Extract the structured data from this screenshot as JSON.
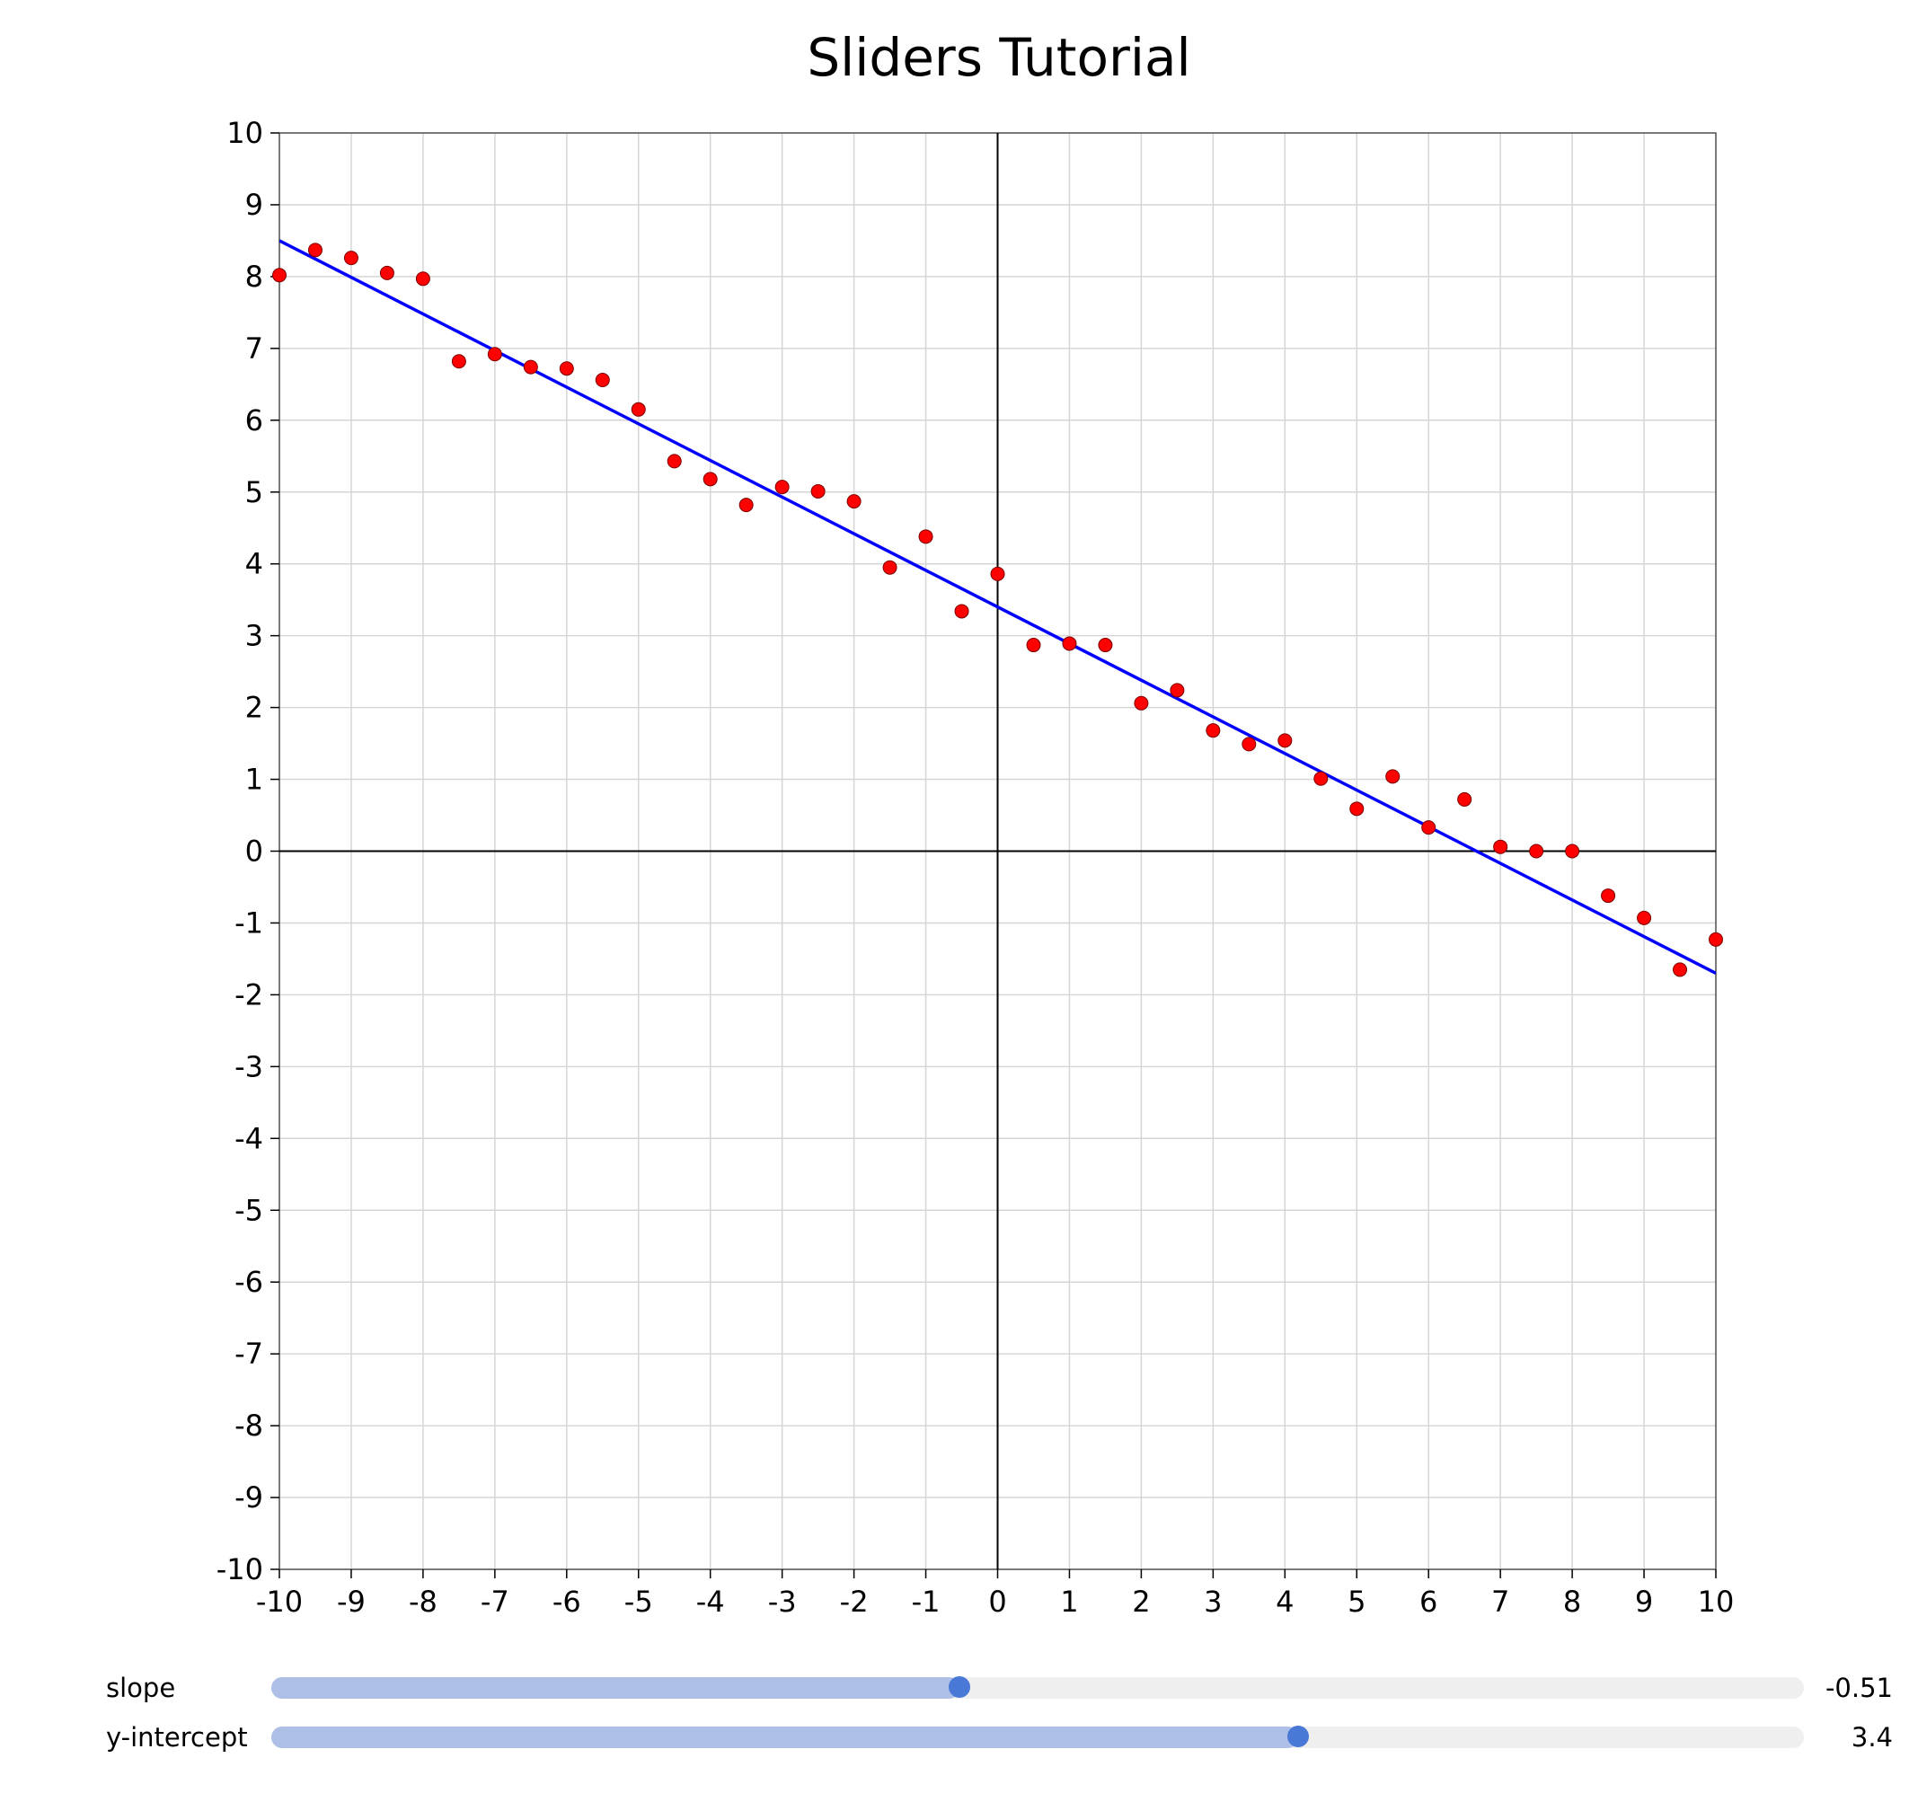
{
  "chart_data": {
    "type": "scatter",
    "title": "Sliders Tutorial",
    "xlabel": "",
    "ylabel": "",
    "xlim": [
      -10,
      10
    ],
    "ylim": [
      -10,
      10
    ],
    "grid": true,
    "x_ticks": [
      "-10",
      "-9",
      "-8",
      "-7",
      "-6",
      "-5",
      "-4",
      "-3",
      "-2",
      "-1",
      "0",
      "1",
      "2",
      "3",
      "4",
      "5",
      "6",
      "7",
      "8",
      "9",
      "10"
    ],
    "y_ticks": [
      "10",
      "9",
      "8",
      "7",
      "6",
      "5",
      "4",
      "3",
      "2",
      "1",
      "0",
      "-1",
      "-2",
      "-3",
      "-4",
      "-5",
      "-6",
      "-7",
      "-8",
      "-9",
      "-10"
    ],
    "series": [
      {
        "name": "points",
        "type": "scatter",
        "color": "#ff0000",
        "x": [
          -10,
          -9.5,
          -9,
          -8.5,
          -8,
          -7.5,
          -7,
          -6.5,
          -6,
          -5.5,
          -5,
          -4.5,
          -4,
          -3.5,
          -3,
          -2.5,
          -2,
          -1.5,
          -1,
          -0.5,
          0,
          0.5,
          1,
          1.5,
          2,
          2.5,
          3,
          3.5,
          4,
          4.5,
          5,
          5.5,
          6,
          6.5,
          7,
          7.5,
          8,
          8.5,
          9,
          9.5,
          10
        ],
        "y": [
          8.02,
          8.37,
          8.26,
          8.05,
          7.97,
          6.82,
          6.92,
          6.74,
          6.72,
          6.56,
          6.15,
          5.43,
          5.18,
          4.82,
          5.07,
          5.01,
          4.87,
          3.95,
          4.38,
          3.34,
          3.86,
          2.87,
          2.89,
          2.87,
          2.06,
          2.24,
          1.68,
          1.49,
          1.54,
          1.01,
          0.59,
          1.04,
          0.33,
          0.72,
          0.06,
          0.0,
          0.0,
          -0.62,
          -0.93,
          -1.65,
          -1.23
        ]
      },
      {
        "name": "line",
        "type": "line",
        "color": "#0000ff",
        "slope": -0.51,
        "intercept": 3.4
      }
    ]
  },
  "controls": {
    "slope": {
      "label": "slope",
      "value": -0.51,
      "value_text": "-0.51",
      "min": -5,
      "max": 5
    },
    "intercept": {
      "label": "y-intercept",
      "value": 3.4,
      "value_text": "3.4",
      "min": -10,
      "max": 10
    }
  }
}
